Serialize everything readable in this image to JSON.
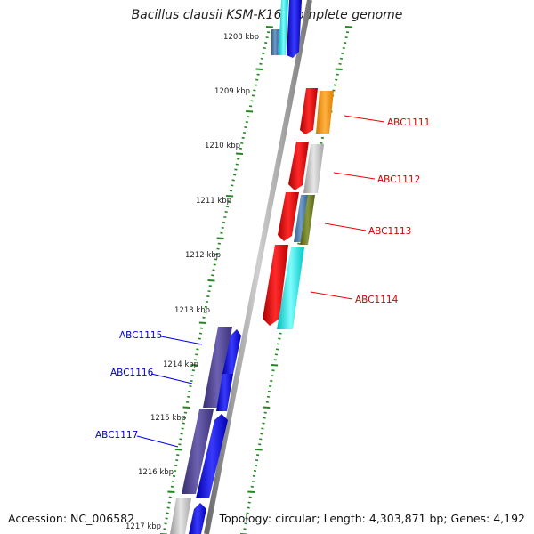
{
  "title": "Bacillus clausii KSM-K16, complete genome",
  "accession": "Accession: NC_006582",
  "topology": "Topology: circular; Length: 4,303,871 bp; Genes: 4,192",
  "kbp_labels": [
    "1208 kbp",
    "1209 kbp",
    "1210 kbp",
    "1211 kbp",
    "1212 kbp",
    "1213 kbp",
    "1214 kbp",
    "1215 kbp",
    "1216 kbp",
    "1217 kbp"
  ],
  "gene_labels": [
    {
      "text": "ABC1111",
      "color": "#cc0000"
    },
    {
      "text": "ABC1112",
      "color": "#cc0000"
    },
    {
      "text": "ABC1113",
      "color": "#cc0000"
    },
    {
      "text": "ABC1114",
      "color": "#cc0000"
    },
    {
      "text": "ABC1115",
      "color": "#0000cc"
    },
    {
      "text": "ABC1116",
      "color": "#0000cc"
    },
    {
      "text": "ABC1117",
      "color": "#0000cc"
    }
  ],
  "colors": {
    "red": "#ee0000",
    "orange": "#ff9900",
    "gray": "#bbbbbb",
    "steel": "#4477aa",
    "olive": "#667722",
    "cyan": "#00e8e8",
    "slate": "#4a3f8f",
    "blue": "#0000ee",
    "tick": "#228822",
    "backbone": "#888888"
  }
}
